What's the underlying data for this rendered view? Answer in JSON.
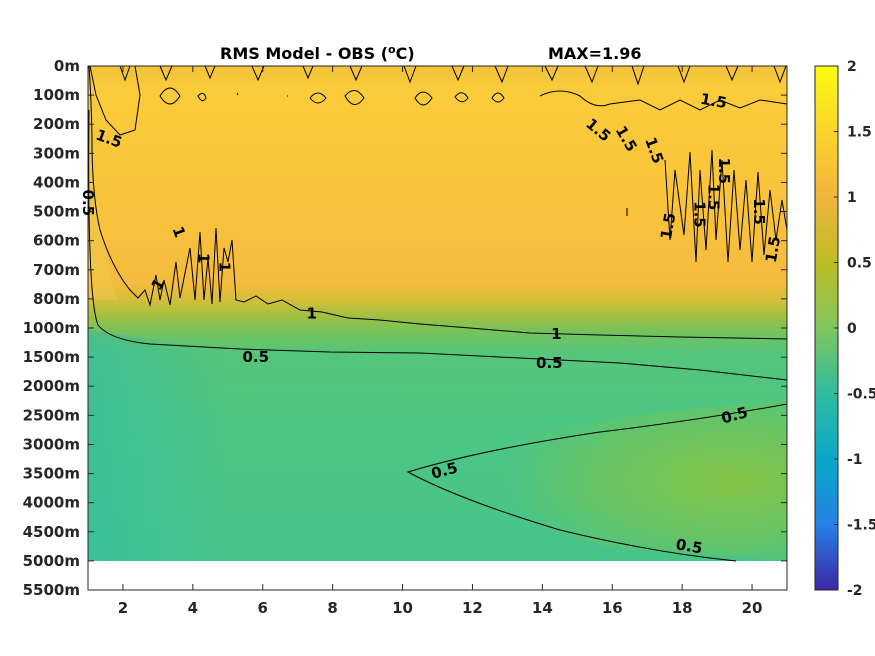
{
  "chart_data": {
    "type": "heatmap",
    "title": "RMS Model - OBS (",
    "title_super": "o",
    "title_unit": "C)",
    "max_label": "MAX=1.96",
    "x_ticks": [
      2,
      4,
      6,
      8,
      10,
      12,
      14,
      16,
      18,
      20
    ],
    "xlim": [
      1,
      21
    ],
    "y_ticks": [
      "0m",
      "100m",
      "200m",
      "300m",
      "400m",
      "500m",
      "600m",
      "700m",
      "800m",
      "1000m",
      "1500m",
      "2000m",
      "2500m",
      "3000m",
      "3500m",
      "4000m",
      "4500m",
      "5000m",
      "5500m"
    ],
    "colorbar": {
      "ticks": [
        "2",
        "1.5",
        "1",
        "0.5",
        "0",
        "-0.5",
        "-1",
        "-1.5",
        "-2"
      ],
      "range": [
        -2,
        2
      ],
      "colormap": "parula"
    },
    "contour_levels": [
      0.5,
      1,
      1.5
    ],
    "contour_labels": [
      {
        "text": "1.5",
        "x": 1.6,
        "y": 2.5,
        "angle": 20
      },
      {
        "text": "0.5",
        "x": 1.0,
        "y": 4.7,
        "angle": 90
      },
      {
        "text": "1",
        "x": 3.6,
        "y": 5.7,
        "angle": 70
      },
      {
        "text": "1",
        "x": 4.3,
        "y": 6.6,
        "angle": 90
      },
      {
        "text": "1",
        "x": 4.9,
        "y": 6.9,
        "angle": 90
      },
      {
        "text": "1",
        "x": 3.0,
        "y": 7.5,
        "angle": -60
      },
      {
        "text": "1",
        "x": 7.4,
        "y": 8.5,
        "angle": 0
      },
      {
        "text": "1",
        "x": 14.4,
        "y": 9.2,
        "angle": 0
      },
      {
        "text": "0.5",
        "x": 5.8,
        "y": 10.0,
        "angle": 0
      },
      {
        "text": "0.5",
        "x": 14.2,
        "y": 10.2,
        "angle": 0
      },
      {
        "text": "1.5",
        "x": 18.9,
        "y": 1.2,
        "angle": 10
      },
      {
        "text": "1.5",
        "x": 15.6,
        "y": 2.2,
        "angle": 40
      },
      {
        "text": "1.5",
        "x": 16.4,
        "y": 2.5,
        "angle": 60
      },
      {
        "text": "1.5",
        "x": 17.2,
        "y": 2.9,
        "angle": 70
      },
      {
        "text": "1.5",
        "x": 17.6,
        "y": 5.5,
        "angle": -80
      },
      {
        "text": "1.5",
        "x": 18.5,
        "y": 5.1,
        "angle": 90
      },
      {
        "text": "1.5",
        "x": 19.2,
        "y": 3.6,
        "angle": 90
      },
      {
        "text": "1.5",
        "x": 18.9,
        "y": 4.5,
        "angle": 90
      },
      {
        "text": "1.5",
        "x": 20.2,
        "y": 5.0,
        "angle": 90
      },
      {
        "text": "1.5",
        "x": 20.6,
        "y": 6.3,
        "angle": -80
      },
      {
        "text": "0.5",
        "x": 19.5,
        "y": 12.0,
        "angle": -15
      },
      {
        "text": "0.5",
        "x": 11.2,
        "y": 13.9,
        "angle": -15
      },
      {
        "text": "0.5",
        "x": 18.2,
        "y": 16.5,
        "angle": 10
      }
    ]
  }
}
